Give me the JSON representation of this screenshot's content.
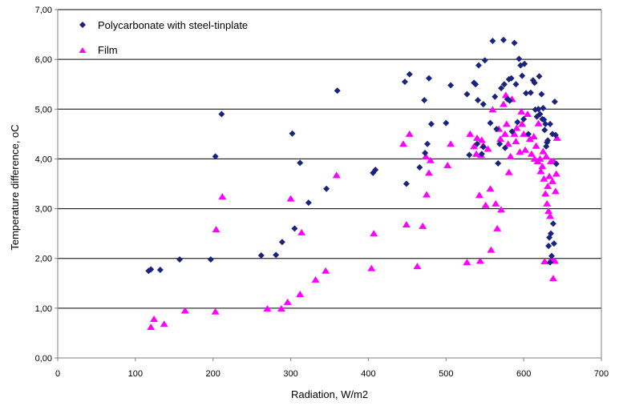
{
  "chart_data": {
    "type": "scatter",
    "title": "",
    "xlabel": "Radiation, W/m2",
    "ylabel": "Temperature difference, oC",
    "xlim": [
      0,
      700
    ],
    "ylim": [
      0,
      7
    ],
    "x_ticks": [
      0,
      100,
      200,
      300,
      400,
      500,
      600,
      700
    ],
    "x_tick_labels": [
      "0",
      "100",
      "200",
      "300",
      "400",
      "500",
      "600",
      "700"
    ],
    "y_ticks": [
      0,
      1,
      2,
      3,
      4,
      5,
      6,
      7
    ],
    "y_tick_labels": [
      "0,00",
      "1,00",
      "2,00",
      "3,00",
      "4,00",
      "5,00",
      "6,00",
      "7,00"
    ],
    "grid": "horizontal",
    "legend_position": "top-left",
    "series": [
      {
        "name": "Polycarbonate with steel-tinplate",
        "color": "#1a237e",
        "marker": "diamond",
        "points": [
          [
            117,
            1.75
          ],
          [
            120,
            1.78
          ],
          [
            132,
            1.77
          ],
          [
            157,
            1.98
          ],
          [
            197,
            1.98
          ],
          [
            203,
            4.05
          ],
          [
            211,
            4.9
          ],
          [
            262,
            2.06
          ],
          [
            281,
            2.07
          ],
          [
            289,
            2.33
          ],
          [
            302,
            4.51
          ],
          [
            305,
            2.6
          ],
          [
            312,
            3.92
          ],
          [
            323,
            3.12
          ],
          [
            346,
            3.4
          ],
          [
            360,
            5.37
          ],
          [
            406,
            3.72
          ],
          [
            409,
            3.78
          ],
          [
            447,
            5.55
          ],
          [
            449,
            3.5
          ],
          [
            453,
            5.7
          ],
          [
            466,
            3.83
          ],
          [
            472,
            5.18
          ],
          [
            473,
            4.12
          ],
          [
            476,
            4.3
          ],
          [
            478,
            5.62
          ],
          [
            481,
            4.7
          ],
          [
            500,
            4.72
          ],
          [
            506,
            5.48
          ],
          [
            527,
            5.3
          ],
          [
            530,
            4.08
          ],
          [
            536,
            5.53
          ],
          [
            538,
            5.5
          ],
          [
            540,
            4.3
          ],
          [
            541,
            5.18
          ],
          [
            542,
            5.88
          ],
          [
            546,
            4.1
          ],
          [
            548,
            4.24
          ],
          [
            548,
            5.1
          ],
          [
            550,
            5.98
          ],
          [
            557,
            4.72
          ],
          [
            560,
            6.37
          ],
          [
            563,
            5.25
          ],
          [
            565,
            4.6
          ],
          [
            567,
            3.91
          ],
          [
            569,
            4.3
          ],
          [
            571,
            5.42
          ],
          [
            574,
            6.39
          ],
          [
            575,
            5.5
          ],
          [
            576,
            4.22
          ],
          [
            579,
            5.2
          ],
          [
            581,
            5.6
          ],
          [
            582,
            5.17
          ],
          [
            584,
            5.62
          ],
          [
            585,
            4.55
          ],
          [
            588,
            6.33
          ],
          [
            590,
            5.5
          ],
          [
            592,
            4.74
          ],
          [
            594,
            6.01
          ],
          [
            596,
            5.88
          ],
          [
            598,
            5.67
          ],
          [
            600,
            4.8
          ],
          [
            601,
            5.91
          ],
          [
            603,
            5.32
          ],
          [
            606,
            4.5
          ],
          [
            609,
            5.33
          ],
          [
            612,
            5.58
          ],
          [
            614,
            5.53
          ],
          [
            615,
            4.99
          ],
          [
            617,
            4.85
          ],
          [
            619,
            5.0
          ],
          [
            620,
            5.66
          ],
          [
            621,
            4.9
          ],
          [
            623,
            5.3
          ],
          [
            624,
            4.8
          ],
          [
            625,
            5.02
          ],
          [
            626,
            4.79
          ],
          [
            627,
            4.58
          ],
          [
            628,
            4.7
          ],
          [
            629,
            4.25
          ],
          [
            630,
            4.33
          ],
          [
            631,
            4.37
          ],
          [
            632,
            2.25
          ],
          [
            633,
            2.42
          ],
          [
            634,
            1.92
          ],
          [
            634,
            4.7
          ],
          [
            635,
            2.5
          ],
          [
            636,
            2.05
          ],
          [
            637,
            4.5
          ],
          [
            638,
            2.7
          ],
          [
            639,
            2.3
          ],
          [
            640,
            5.15
          ],
          [
            641,
            4.48
          ],
          [
            642,
            3.9
          ]
        ]
      },
      {
        "name": "Film",
        "color": "#ff00ff",
        "marker": "triangle",
        "points": [
          [
            120,
            0.62
          ],
          [
            124,
            0.78
          ],
          [
            137,
            0.68
          ],
          [
            164,
            0.95
          ],
          [
            203,
            0.93
          ],
          [
            204,
            2.58
          ],
          [
            212,
            3.24
          ],
          [
            270,
            0.99
          ],
          [
            288,
            0.99
          ],
          [
            296,
            1.12
          ],
          [
            300,
            3.2
          ],
          [
            312,
            1.28
          ],
          [
            314,
            2.52
          ],
          [
            332,
            1.57
          ],
          [
            345,
            1.75
          ],
          [
            359,
            3.67
          ],
          [
            404,
            1.8
          ],
          [
            407,
            2.5
          ],
          [
            445,
            4.3
          ],
          [
            449,
            2.68
          ],
          [
            453,
            4.5
          ],
          [
            463,
            1.84
          ],
          [
            470,
            2.65
          ],
          [
            474,
            4.05
          ],
          [
            475,
            3.28
          ],
          [
            478,
            3.72
          ],
          [
            480,
            3.97
          ],
          [
            502,
            3.87
          ],
          [
            506,
            4.3
          ],
          [
            527,
            1.92
          ],
          [
            531,
            4.5
          ],
          [
            536,
            4.25
          ],
          [
            539,
            4.1
          ],
          [
            540,
            4.42
          ],
          [
            543,
            3.27
          ],
          [
            544,
            1.95
          ],
          [
            545,
            4.08
          ],
          [
            546,
            4.38
          ],
          [
            548,
            4.27
          ],
          [
            551,
            3.07
          ],
          [
            554,
            4.2
          ],
          [
            557,
            3.4
          ],
          [
            558,
            2.17
          ],
          [
            560,
            4.99
          ],
          [
            564,
            3.1
          ],
          [
            566,
            2.6
          ],
          [
            568,
            4.6
          ],
          [
            570,
            4.4
          ],
          [
            571,
            2.98
          ],
          [
            574,
            5.1
          ],
          [
            576,
            4.5
          ],
          [
            577,
            5.28
          ],
          [
            578,
            4.7
          ],
          [
            580,
            4.3
          ],
          [
            581,
            3.73
          ],
          [
            583,
            4.05
          ],
          [
            585,
            5.2
          ],
          [
            588,
            4.5
          ],
          [
            590,
            4.35
          ],
          [
            591,
            4.62
          ],
          [
            595,
            4.14
          ],
          [
            597,
            4.95
          ],
          [
            598,
            4.7
          ],
          [
            600,
            4.5
          ],
          [
            602,
            4.18
          ],
          [
            605,
            4.9
          ],
          [
            608,
            4.4
          ],
          [
            610,
            4.1
          ],
          [
            613,
            4.45
          ],
          [
            614,
            4.0
          ],
          [
            616,
            4.26
          ],
          [
            618,
            3.95
          ],
          [
            619,
            4.71
          ],
          [
            621,
            4.0
          ],
          [
            622,
            3.75
          ],
          [
            624,
            3.85
          ],
          [
            625,
            4.15
          ],
          [
            626,
            3.6
          ],
          [
            627,
            1.94
          ],
          [
            628,
            3.3
          ],
          [
            629,
            4.05
          ],
          [
            630,
            3.1
          ],
          [
            631,
            3.45
          ],
          [
            632,
            2.95
          ],
          [
            633,
            3.65
          ],
          [
            634,
            2.85
          ],
          [
            635,
            3.95
          ],
          [
            636,
            2.0
          ],
          [
            637,
            3.55
          ],
          [
            638,
            1.6
          ],
          [
            639,
            3.95
          ],
          [
            640,
            1.95
          ],
          [
            641,
            3.35
          ],
          [
            642,
            3.7
          ],
          [
            643,
            4.42
          ]
        ]
      }
    ]
  }
}
